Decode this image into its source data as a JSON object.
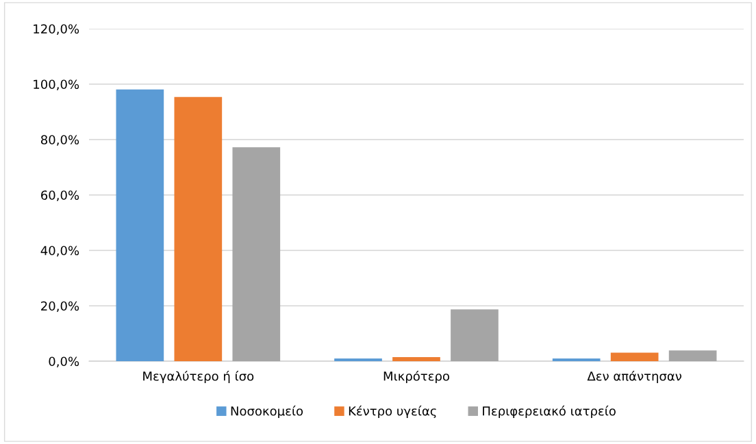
{
  "chart_data": {
    "type": "bar",
    "categories": [
      "Μεγαλύτερο ή ίσο",
      "Μικρότερο",
      "Δεν απάντησαν"
    ],
    "series": [
      {
        "name": "Νοσοκομείο",
        "color": "#5b9bd5",
        "values": [
          98.1,
          1.0,
          1.0
        ]
      },
      {
        "name": "Κέντρο υγείας",
        "color": "#ed7d31",
        "values": [
          95.4,
          1.5,
          3.1
        ]
      },
      {
        "name": "Περιφερειακό ιατρείο",
        "color": "#a5a5a5",
        "values": [
          77.2,
          18.7,
          3.9
        ]
      }
    ],
    "ylim": [
      0,
      120
    ],
    "yticks": [
      {
        "value": 0,
        "label": "0,0%"
      },
      {
        "value": 20,
        "label": "20,0%"
      },
      {
        "value": 40,
        "label": "40,0%"
      },
      {
        "value": 60,
        "label": "60,0%"
      },
      {
        "value": 80,
        "label": "80,0%"
      },
      {
        "value": 100,
        "label": "100,0%"
      },
      {
        "value": 120,
        "label": "120,0%"
      }
    ],
    "grid": "y",
    "legend": "bottom"
  }
}
